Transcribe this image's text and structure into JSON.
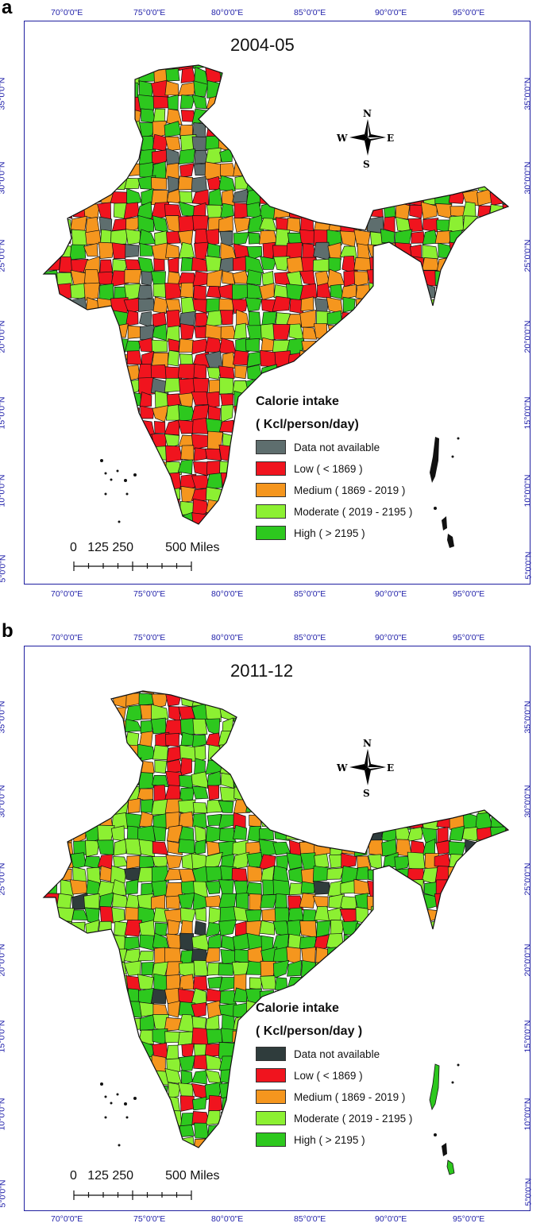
{
  "panels": [
    {
      "letter": "a",
      "year": "2004-05",
      "legend_colors": [
        "#5e6e6e",
        "#f0141e",
        "#f5961e",
        "#8cf032",
        "#2dc81e"
      ]
    },
    {
      "letter": "b",
      "year": "2011-12",
      "legend_colors": [
        "#2f3c3c",
        "#f0141e",
        "#f5961e",
        "#8cf032",
        "#2dc81e"
      ]
    }
  ],
  "legend": {
    "title_line1": "Calorie intake",
    "title_line1_b": "Calorie intake",
    "title_line2": "( Kcl/person/day)",
    "title_line2_b": "( Kcl/person/day )",
    "items": [
      "Data not available",
      "Low ( < 1869 )",
      "Medium ( 1869 - 2019 )",
      "Moderate ( 2019 - 2195 )",
      "High ( > 2195 )"
    ]
  },
  "axes": {
    "longitudes": [
      "70°0'0\"E",
      "75°0'0\"E",
      "80°0'0\"E",
      "85°0'0\"E",
      "90°0'0\"E",
      "95°0'0\"E"
    ],
    "latitudes": [
      "35°0'0\"N",
      "30°0'0\"N",
      "25°0'0\"N",
      "20°0'0\"N",
      "15°0'0\"N",
      "10°0'0\"N",
      "5°0'0\"N"
    ]
  },
  "scale_bar": {
    "label": "0   125 250         500 Miles"
  },
  "compass": {
    "n": "N",
    "s": "S",
    "e": "E",
    "w": "W"
  }
}
